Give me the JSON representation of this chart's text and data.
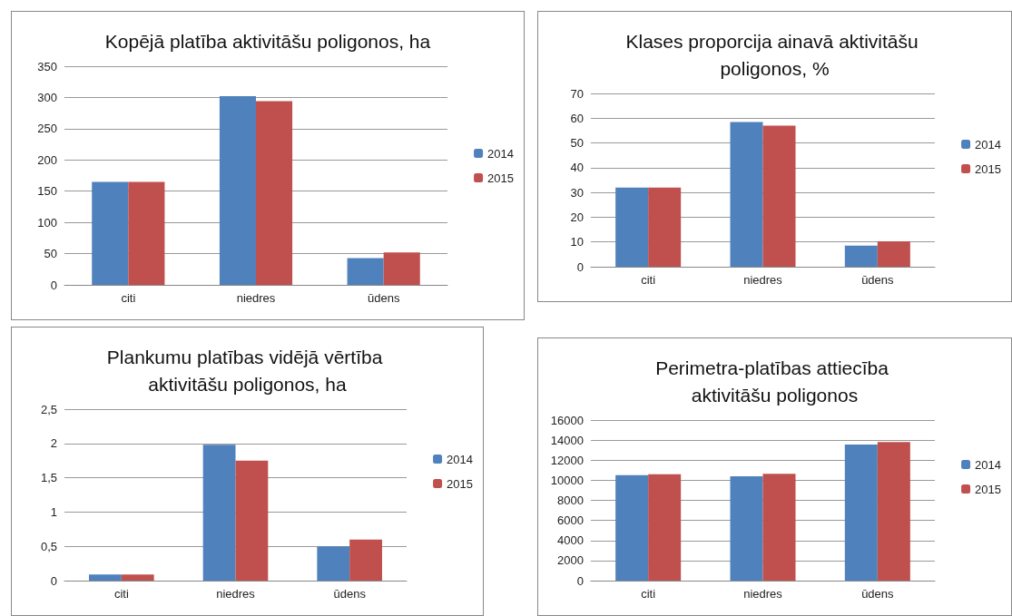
{
  "chart_data": [
    {
      "type": "bar",
      "title": "Kopējā platība aktivitāšu poligonos, ha",
      "categories": [
        "citi",
        "niedres",
        "ūdens"
      ],
      "series": [
        {
          "name": "2014",
          "color": "#4f81bd",
          "values": [
            165,
            302,
            43
          ]
        },
        {
          "name": "2015",
          "color": "#c0504d",
          "values": [
            165,
            294,
            52
          ]
        }
      ],
      "ylim": [
        0,
        350
      ],
      "yticks": [
        0,
        50,
        100,
        150,
        200,
        250,
        300,
        350
      ],
      "grid": "y",
      "legend": "right"
    },
    {
      "type": "bar",
      "title": "Klases proporcija ainavā aktivitāšu poligonos, %",
      "categories": [
        "citi",
        "niedres",
        "ūdens"
      ],
      "series": [
        {
          "name": "2014",
          "color": "#4f81bd",
          "values": [
            32,
            58.5,
            8.5
          ]
        },
        {
          "name": "2015",
          "color": "#c0504d",
          "values": [
            32,
            57,
            10.3
          ]
        }
      ],
      "ylim": [
        0,
        70
      ],
      "yticks": [
        0,
        10,
        20,
        30,
        40,
        50,
        60,
        70
      ],
      "grid": "y",
      "legend": "right"
    },
    {
      "type": "bar",
      "title": "Plankumu platības vidējā vērtība aktivitāšu poligonos, ha",
      "categories": [
        "citi",
        "niedres",
        "ūdens"
      ],
      "series": [
        {
          "name": "2014",
          "color": "#4f81bd",
          "values": [
            0.09,
            1.98,
            0.5
          ]
        },
        {
          "name": "2015",
          "color": "#c0504d",
          "values": [
            0.09,
            1.75,
            0.6
          ]
        }
      ],
      "ylim": [
        0,
        2.5
      ],
      "yticks": [
        0,
        {
          "value": 0.5,
          "label": "0,5"
        },
        1,
        {
          "value": 1.5,
          "label": "1,5"
        },
        2,
        {
          "value": 2.5,
          "label": "2,5"
        }
      ],
      "grid": "y",
      "legend": "right"
    },
    {
      "type": "bar",
      "title": "Perimetra-platības attiecība aktivitāšu poligonos",
      "categories": [
        "citi",
        "niedres",
        "ūdens"
      ],
      "series": [
        {
          "name": "2014",
          "color": "#4f81bd",
          "values": [
            10500,
            10400,
            13550
          ]
        },
        {
          "name": "2015",
          "color": "#c0504d",
          "values": [
            10600,
            10650,
            13800
          ]
        }
      ],
      "ylim": [
        0,
        16000
      ],
      "yticks": [
        0,
        2000,
        4000,
        6000,
        8000,
        10000,
        12000,
        14000,
        16000
      ],
      "grid": "y",
      "legend": "right"
    }
  ]
}
